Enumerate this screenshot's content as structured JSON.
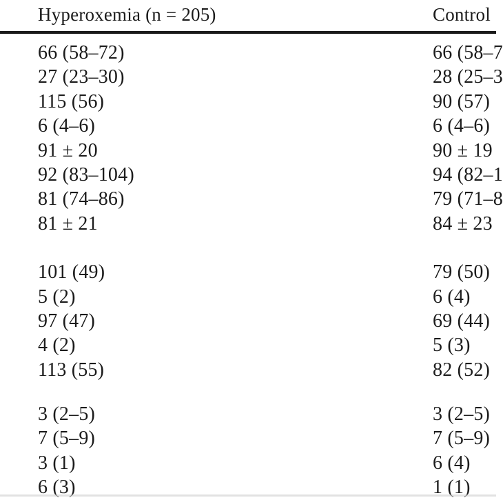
{
  "table": {
    "columns": [
      {
        "label": "Hyperoxemia (n = 205)"
      },
      {
        "label": "Control"
      }
    ],
    "groups": [
      {
        "rows": [
          {
            "hyperoxemia": "66 (58–72)",
            "control": "66 (58–7"
          },
          {
            "hyperoxemia": "27 (23–30)",
            "control": "28 (25–3"
          },
          {
            "hyperoxemia": "115 (56)",
            "control": "90 (57)"
          },
          {
            "hyperoxemia": "6 (4–6)",
            "control": "6 (4–6)"
          },
          {
            "hyperoxemia": "91 ± 20",
            "control": "90 ± 19"
          },
          {
            "hyperoxemia": "92 (83–104)",
            "control": "94 (82–1"
          },
          {
            "hyperoxemia": "81 (74–86)",
            "control": "79 (71–8"
          },
          {
            "hyperoxemia": "81 ± 21",
            "control": "84 ± 23"
          }
        ]
      },
      {
        "rows": [
          {
            "hyperoxemia": "101 (49)",
            "control": "79 (50)"
          },
          {
            "hyperoxemia": "5 (2)",
            "control": "6 (4)"
          },
          {
            "hyperoxemia": "97 (47)",
            "control": "69 (44)"
          },
          {
            "hyperoxemia": "4 (2)",
            "control": "5 (3)"
          },
          {
            "hyperoxemia": "113 (55)",
            "control": "82 (52)"
          }
        ]
      },
      {
        "rows": [
          {
            "hyperoxemia": "3 (2–5)",
            "control": "3 (2–5)"
          },
          {
            "hyperoxemia": "7 (5–9)",
            "control": "7 (5–9)"
          },
          {
            "hyperoxemia": "3 (1)",
            "control": "6 (4)"
          },
          {
            "hyperoxemia": "6 (3)",
            "control": "1 (1)"
          }
        ]
      }
    ]
  }
}
